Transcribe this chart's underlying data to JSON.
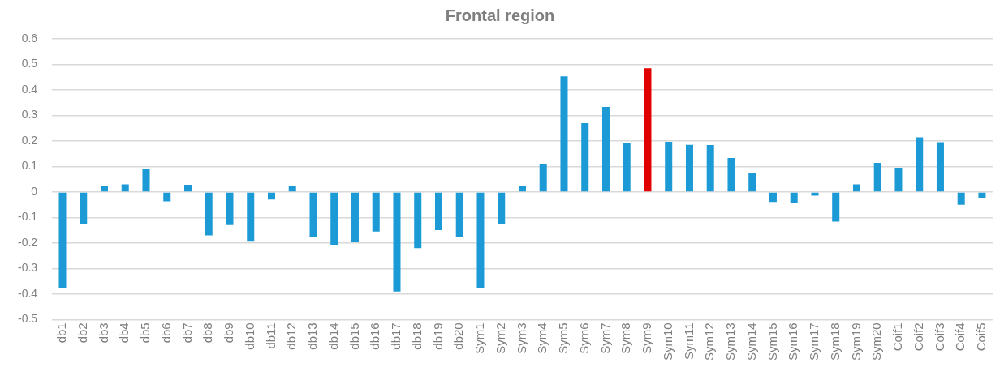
{
  "chart_data": {
    "type": "bar",
    "title": "Frontal region",
    "categories": [
      "db1",
      "db2",
      "db3",
      "db4",
      "db5",
      "db6",
      "db7",
      "db8",
      "db9",
      "db10",
      "db11",
      "db12",
      "db13",
      "db14",
      "db15",
      "db16",
      "db17",
      "db18",
      "db19",
      "db20",
      "Sym1",
      "Sym2",
      "Sym3",
      "Sym4",
      "Sym5",
      "Sym6",
      "Sym7",
      "Sym8",
      "Sym9",
      "Sym10",
      "Sym11",
      "Sym12",
      "Sym13",
      "Sym14",
      "Sym15",
      "Sym16",
      "Sym17",
      "Sym18",
      "Sym19",
      "Sym20",
      "Coif1",
      "Coif2",
      "Coif3",
      "Coif4",
      "Coif5"
    ],
    "values": [
      -0.375,
      -0.125,
      0.025,
      0.03,
      0.09,
      -0.037,
      0.028,
      -0.17,
      -0.13,
      -0.195,
      -0.03,
      0.024,
      -0.175,
      -0.207,
      -0.197,
      -0.155,
      -0.39,
      -0.22,
      -0.15,
      -0.175,
      -0.375,
      -0.125,
      0.025,
      0.11,
      0.453,
      0.27,
      0.333,
      0.19,
      0.485,
      0.197,
      0.185,
      0.184,
      0.133,
      0.073,
      -0.039,
      -0.044,
      -0.015,
      -0.116,
      0.03,
      0.114,
      0.095,
      0.214,
      0.195,
      -0.05,
      -0.026
    ],
    "colors": [
      "#1b9ad6",
      "#1b9ad6",
      "#1b9ad6",
      "#1b9ad6",
      "#1b9ad6",
      "#1b9ad6",
      "#1b9ad6",
      "#1b9ad6",
      "#1b9ad6",
      "#1b9ad6",
      "#1b9ad6",
      "#1b9ad6",
      "#1b9ad6",
      "#1b9ad6",
      "#1b9ad6",
      "#1b9ad6",
      "#1b9ad6",
      "#1b9ad6",
      "#1b9ad6",
      "#1b9ad6",
      "#1b9ad6",
      "#1b9ad6",
      "#1b9ad6",
      "#1b9ad6",
      "#1b9ad6",
      "#1b9ad6",
      "#1b9ad6",
      "#1b9ad6",
      "#e00000",
      "#1b9ad6",
      "#1b9ad6",
      "#1b9ad6",
      "#1b9ad6",
      "#1b9ad6",
      "#1b9ad6",
      "#1b9ad6",
      "#1b9ad6",
      "#1b9ad6",
      "#1b9ad6",
      "#1b9ad6",
      "#1b9ad6",
      "#1b9ad6",
      "#1b9ad6",
      "#1b9ad6",
      "#1b9ad6"
    ],
    "ylim": [
      -0.5,
      0.6
    ],
    "yticks": [
      -0.5,
      -0.4,
      -0.3,
      -0.2,
      -0.1,
      0,
      0.1,
      0.2,
      0.3,
      0.4,
      0.5,
      0.6
    ],
    "grid": "y",
    "legend": false
  }
}
